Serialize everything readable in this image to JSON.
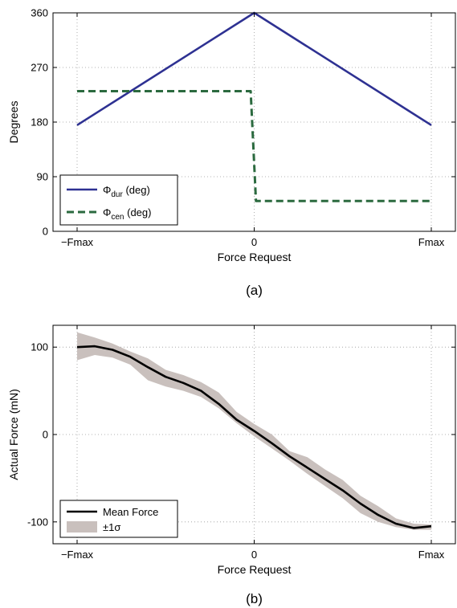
{
  "chart_data": [
    {
      "id": "a",
      "type": "line",
      "caption": "(a)",
      "xlabel": "Force Request",
      "ylabel": "Degrees",
      "xlim": [
        -1,
        1
      ],
      "ylim": [
        0,
        360
      ],
      "xticks": [
        {
          "value": -1,
          "label": "−Fmax"
        },
        {
          "value": 0,
          "label": "0"
        },
        {
          "value": 1,
          "label": "Fmax"
        }
      ],
      "yticks": [
        0,
        90,
        180,
        270,
        360
      ],
      "grid": true,
      "legend_position": "bottom-left",
      "series": [
        {
          "name": "Φ",
          "sub": "dur",
          "suffix": " (deg)",
          "color": "#2e3192",
          "style": "solid",
          "x": [
            -1,
            0,
            1
          ],
          "y": [
            175,
            360,
            175
          ]
        },
        {
          "name": "Φ",
          "sub": "cen",
          "suffix": " (deg)",
          "color": "#2b6a3f",
          "style": "dashed",
          "x": [
            -1,
            -0.02,
            0.01,
            1
          ],
          "y": [
            231,
            231,
            50,
            50
          ]
        }
      ]
    },
    {
      "id": "b",
      "type": "line",
      "caption": "(b)",
      "xlabel": "Force Request",
      "ylabel": "Actual Force (mN)",
      "xlim": [
        -1,
        1
      ],
      "ylim": [
        -125,
        125
      ],
      "xticks": [
        {
          "value": -1,
          "label": "−Fmax"
        },
        {
          "value": 0,
          "label": "0"
        },
        {
          "value": 1,
          "label": "Fmax"
        }
      ],
      "yticks": [
        -100,
        0,
        100
      ],
      "grid": true,
      "legend_position": "bottom-left",
      "band": {
        "name": "±1σ",
        "color": "#c9c0bd",
        "x": [
          -1,
          -0.9,
          -0.8,
          -0.7,
          -0.6,
          -0.5,
          -0.4,
          -0.3,
          -0.2,
          -0.1,
          0,
          0.1,
          0.2,
          0.3,
          0.4,
          0.5,
          0.6,
          0.7,
          0.8,
          0.9,
          1
        ],
        "upper": [
          117,
          111,
          104,
          95,
          87,
          74,
          68,
          60,
          48,
          26,
          12,
          0,
          -19,
          -26,
          -40,
          -52,
          -70,
          -82,
          -96,
          -102,
          -103
        ],
        "lower": [
          85,
          91,
          88,
          80,
          62,
          55,
          50,
          43,
          30,
          13,
          -2,
          -16,
          -30,
          -45,
          -59,
          -73,
          -90,
          -100,
          -106,
          -109,
          -109
        ]
      },
      "series": [
        {
          "name": "Mean Force",
          "color": "#000000",
          "style": "solid",
          "x": [
            -1,
            -0.9,
            -0.8,
            -0.7,
            -0.6,
            -0.5,
            -0.4,
            -0.3,
            -0.2,
            -0.1,
            0,
            0.1,
            0.2,
            0.3,
            0.4,
            0.5,
            0.6,
            0.7,
            0.8,
            0.9,
            1
          ],
          "y": [
            100,
            101,
            97,
            89,
            77,
            66,
            59,
            50,
            35,
            17,
            4,
            -10,
            -25,
            -38,
            -51,
            -64,
            -79,
            -92,
            -102,
            -107,
            -105
          ]
        }
      ]
    }
  ]
}
